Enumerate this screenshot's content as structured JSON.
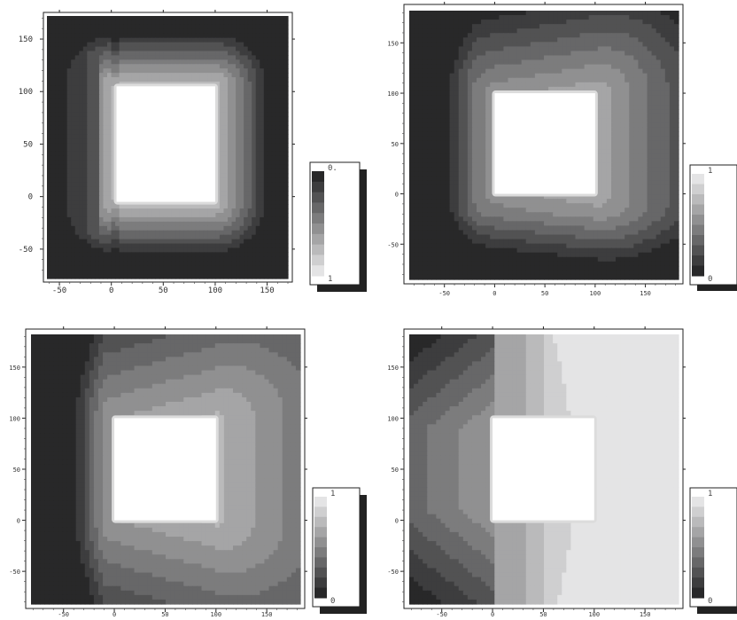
{
  "chart_data": [
    {
      "type": "heatmap",
      "title": "",
      "xlabel": "",
      "ylabel": "",
      "xlim": [
        -62,
        170
      ],
      "ylim": [
        -78,
        172
      ],
      "x_ticks": [
        -50,
        0,
        50,
        100,
        150
      ],
      "y_ticks": [
        -50,
        0,
        50,
        100,
        150
      ],
      "x_tick_labels": [
        "-50",
        "0",
        "50",
        "100",
        "150"
      ],
      "y_tick_labels": [
        "-50",
        "0",
        "50",
        "100",
        "150"
      ],
      "obstacle": {
        "x": [
          5,
          100
        ],
        "y": [
          -5,
          105
        ]
      },
      "palette": "grayscale",
      "levels": 10,
      "colorbar": {
        "top_label": "0.",
        "bottom_label": "1",
        "orientation": "dark-top"
      },
      "grid": false
    },
    {
      "type": "heatmap",
      "title": "",
      "xlabel": "",
      "ylabel": "",
      "xlim": [
        -85,
        183
      ],
      "ylim": [
        -85,
        182
      ],
      "x_ticks": [
        -50,
        0,
        50,
        100,
        150
      ],
      "y_ticks": [
        -50,
        0,
        50,
        100,
        150
      ],
      "x_tick_labels": [
        "-50",
        "0",
        "50",
        "100",
        "150"
      ],
      "y_tick_labels": [
        "-50",
        "0",
        "50",
        "100",
        "150"
      ],
      "obstacle": {
        "x": [
          0,
          100
        ],
        "y": [
          0,
          100
        ]
      },
      "palette": "grayscale",
      "levels": 10,
      "colorbar": {
        "top_label": "1",
        "bottom_label": "0",
        "orientation": "light-top"
      },
      "grid": false
    },
    {
      "type": "heatmap",
      "title": "",
      "xlabel": "",
      "ylabel": "",
      "xlim": [
        -82,
        183
      ],
      "ylim": [
        -82,
        182
      ],
      "x_ticks": [
        -50,
        0,
        50,
        100,
        150
      ],
      "y_ticks": [
        -50,
        0,
        50,
        100,
        150
      ],
      "x_tick_labels": [
        "-50",
        "0",
        "50",
        "100",
        "150"
      ],
      "y_tick_labels": [
        "-50",
        "0",
        "50",
        "100",
        "150"
      ],
      "obstacle": {
        "x": [
          0,
          100
        ],
        "y": [
          0,
          100
        ]
      },
      "palette": "grayscale",
      "levels": 10,
      "colorbar": {
        "top_label": "1",
        "bottom_label": "0",
        "orientation": "light-top"
      },
      "grid": false
    },
    {
      "type": "heatmap",
      "title": "",
      "xlabel": "",
      "ylabel": "",
      "xlim": [
        -82,
        183
      ],
      "ylim": [
        -82,
        182
      ],
      "x_ticks": [
        -50,
        0,
        50,
        100,
        150
      ],
      "y_ticks": [
        -50,
        0,
        50,
        100,
        150
      ],
      "x_tick_labels": [
        "-50",
        "0",
        "50",
        "100",
        "150"
      ],
      "y_tick_labels": [
        "-50",
        "0",
        "50",
        "100",
        "150"
      ],
      "obstacle": {
        "x": [
          0,
          100
        ],
        "y": [
          0,
          100
        ]
      },
      "palette": "grayscale",
      "levels": 10,
      "colorbar": {
        "top_label": "1",
        "bottom_label": "0",
        "orientation": "light-top"
      },
      "grid": false
    }
  ]
}
